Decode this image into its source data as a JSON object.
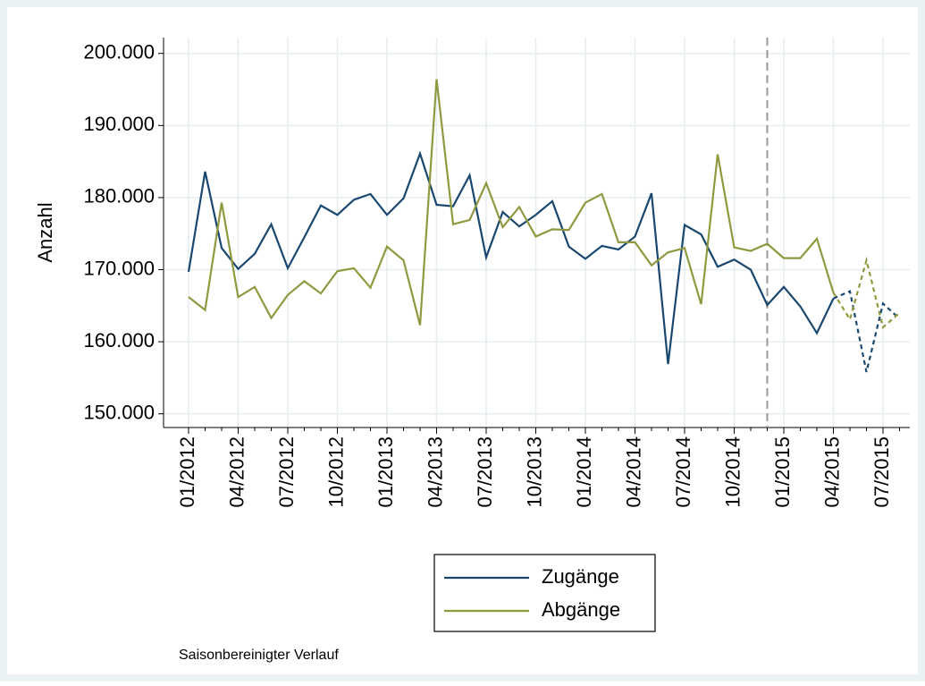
{
  "chart_data": {
    "type": "line",
    "y_label": "Anzahl",
    "note": "Saisonbereinigter Verlauf",
    "categories": [
      "01/2012",
      null,
      null,
      "04/2012",
      null,
      null,
      "07/2012",
      null,
      null,
      "10/2012",
      null,
      null,
      "01/2013",
      null,
      null,
      "04/2013",
      null,
      null,
      "07/2013",
      null,
      null,
      "10/2013",
      null,
      null,
      "01/2014",
      null,
      null,
      "04/2014",
      null,
      null,
      "07/2014",
      null,
      null,
      "10/2014",
      null,
      null,
      "01/2015",
      null,
      null,
      "04/2015",
      null,
      null,
      "07/2015",
      null
    ],
    "series": [
      {
        "name": "Zugänge",
        "color": "#1a476f",
        "values": [
          169700,
          183600,
          173000,
          170100,
          172200,
          176300,
          170200,
          174500,
          178900,
          177600,
          179700,
          180500,
          177600,
          179900,
          186100,
          179000,
          178800,
          183100,
          171700,
          178000,
          176000,
          177600,
          179500,
          173200,
          171500,
          173300,
          172800,
          174600,
          180600,
          156900,
          176200,
          174900,
          170400,
          171400,
          170000,
          165100,
          167600,
          164900,
          161200,
          166000,
          167000,
          155800,
          165300,
          163200
        ]
      },
      {
        "name": "Abgänge",
        "color": "#90993f",
        "values": [
          166200,
          164400,
          179300,
          166200,
          167600,
          163300,
          166500,
          168400,
          166700,
          169800,
          170200,
          167500,
          173200,
          171300,
          162300,
          196400,
          176300,
          176900,
          182000,
          175900,
          178700,
          174600,
          175600,
          175500,
          179300,
          180500,
          173800,
          173800,
          170600,
          172400,
          173000,
          165200,
          186000,
          173100,
          172600,
          173600,
          171600,
          171600,
          174300,
          166800,
          163100,
          171300,
          162000,
          164000
        ]
      }
    ],
    "ylim": [
      148100,
      202200
    ],
    "yticks": [
      {
        "value": 150000,
        "label": "150.000"
      },
      {
        "value": 160000,
        "label": "160.000"
      },
      {
        "value": 170000,
        "label": "170.000"
      },
      {
        "value": 180000,
        "label": "180.000"
      },
      {
        "value": 190000,
        "label": "190.000"
      },
      {
        "value": 200000,
        "label": "200.000"
      }
    ],
    "grid": true,
    "reference_line_index": 35,
    "dashed_from_index": 39,
    "legend": "bottom"
  }
}
